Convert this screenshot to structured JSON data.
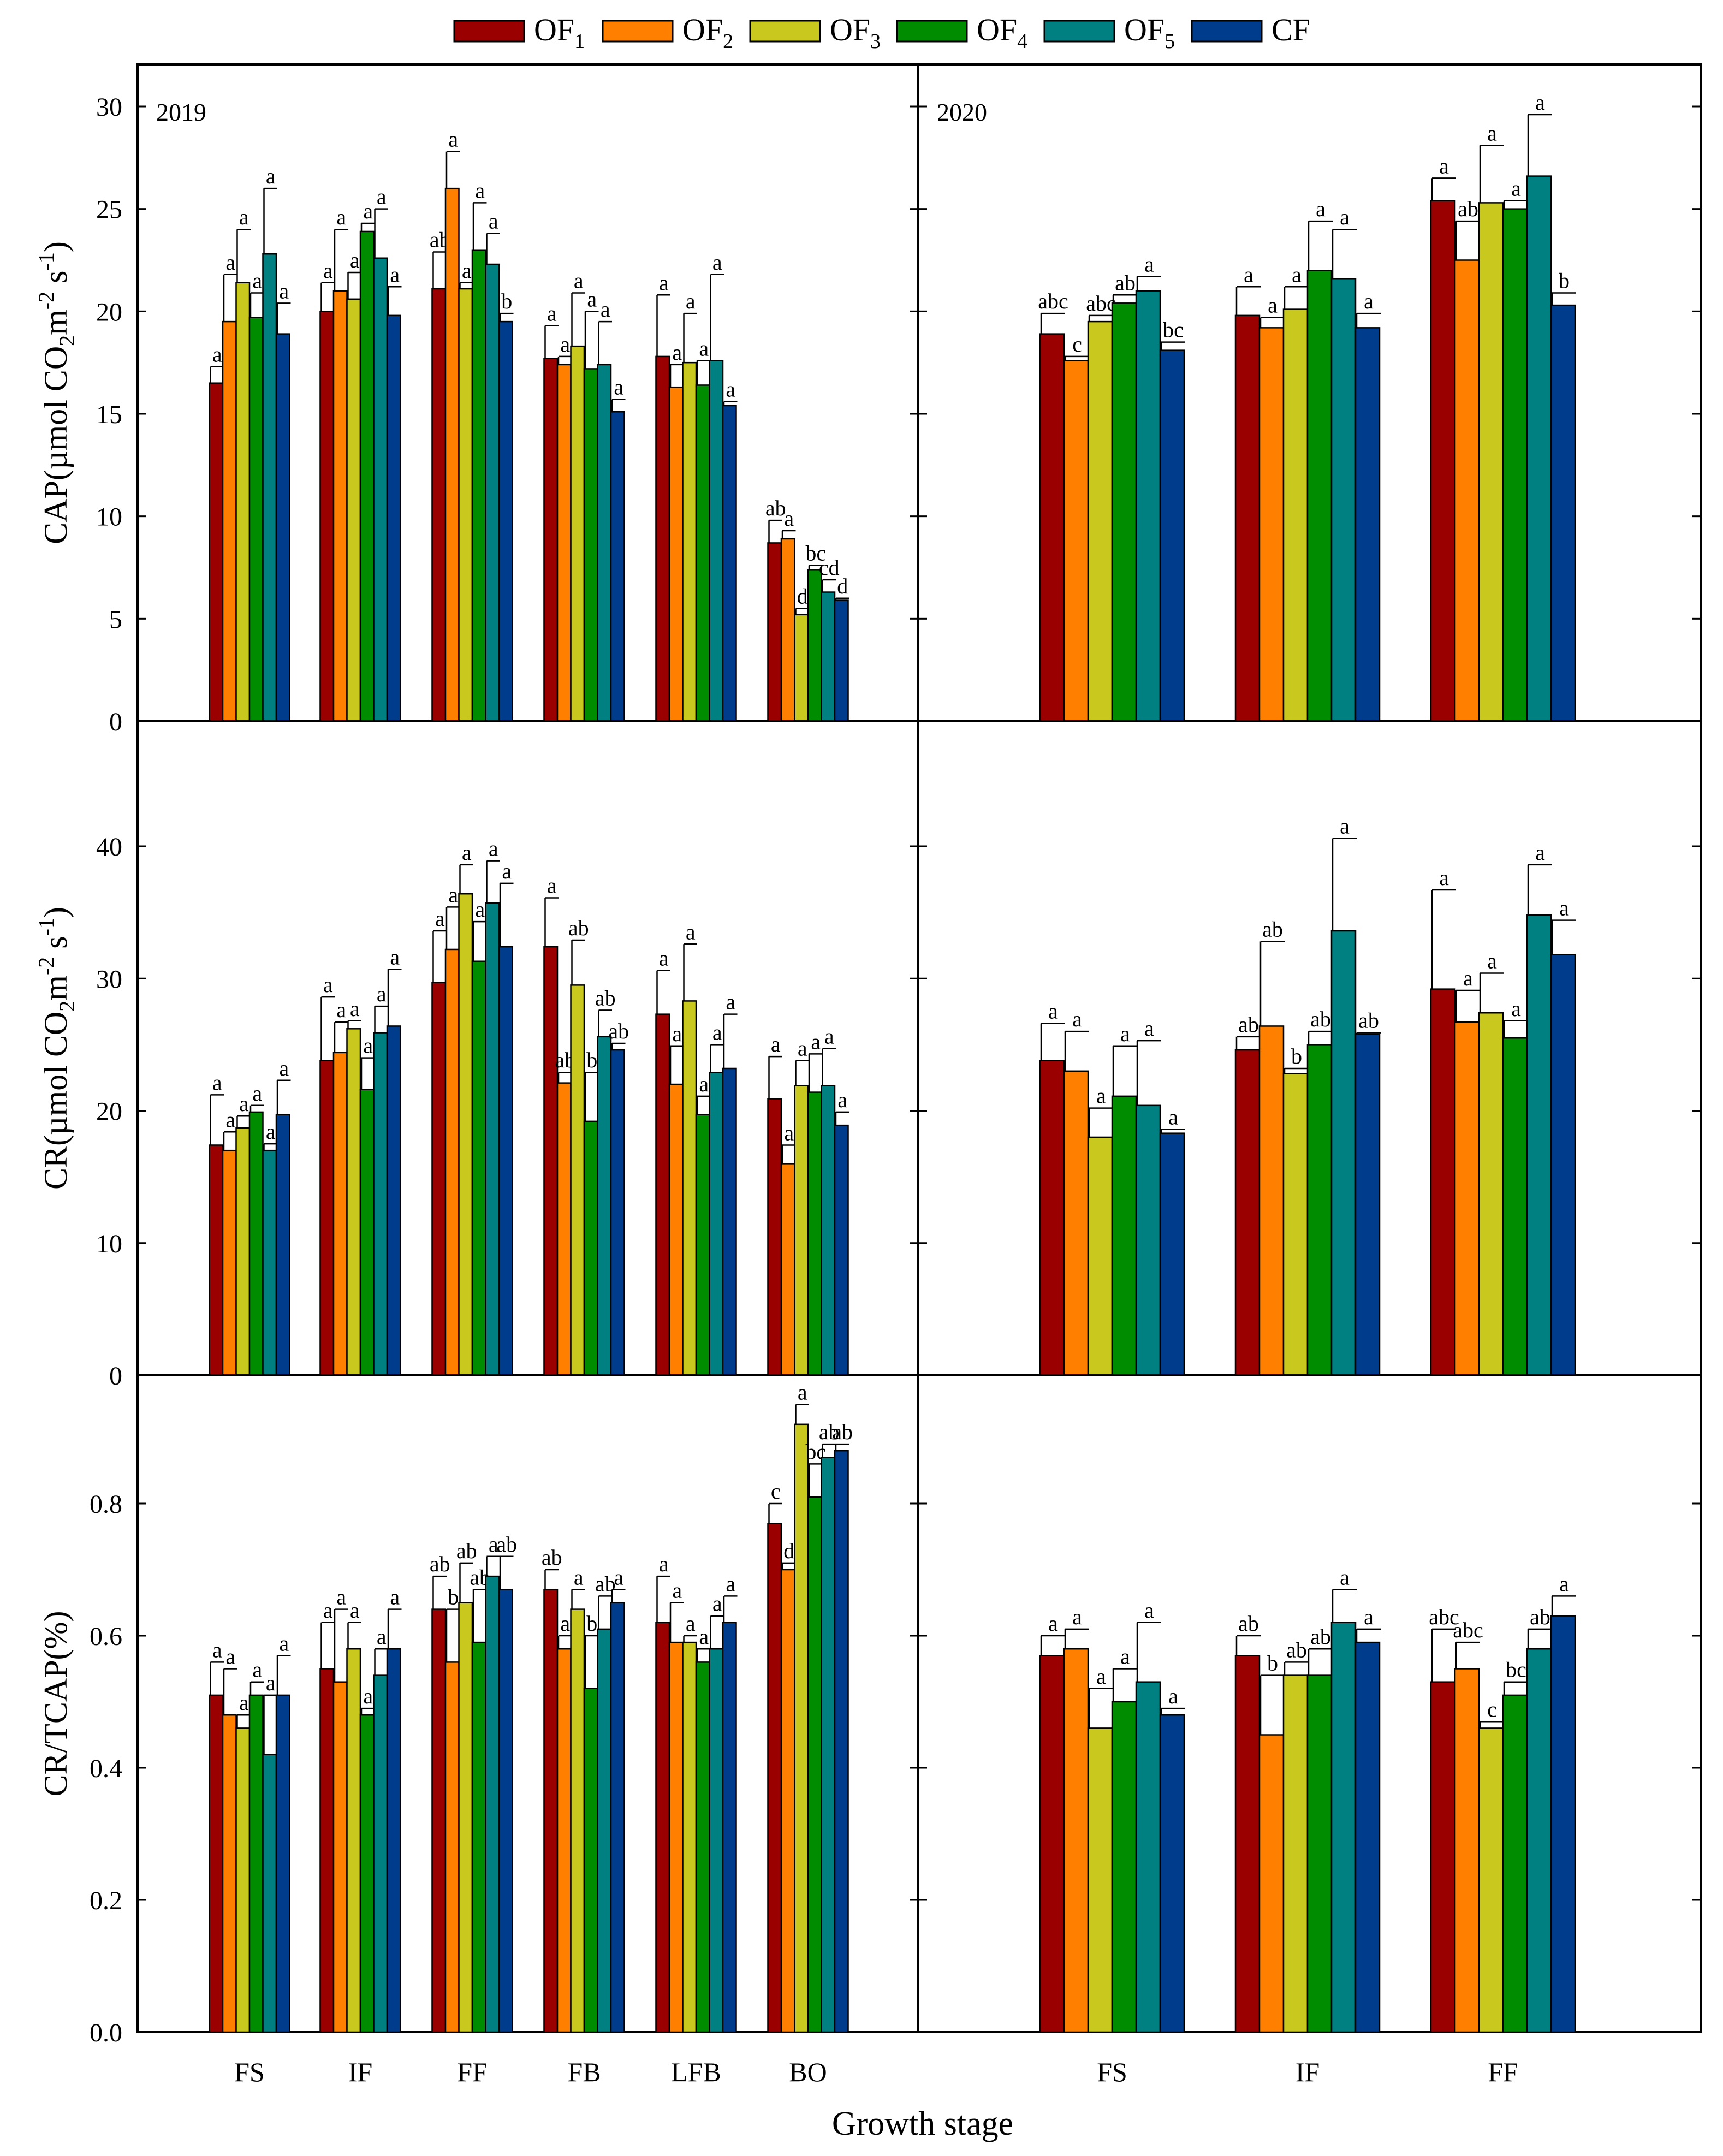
{
  "legend": [
    {
      "name": "OF",
      "sub": "1",
      "color": "#9b0000"
    },
    {
      "name": "OF",
      "sub": "2",
      "color": "#ff8000"
    },
    {
      "name": "OF",
      "sub": "3",
      "color": "#c8c81e"
    },
    {
      "name": "OF",
      "sub": "4",
      "color": "#008c00"
    },
    {
      "name": "OF",
      "sub": "5",
      "color": "#008080"
    },
    {
      "name": "CF",
      "sub": "",
      "color": "#003c8c"
    }
  ],
  "xlabel": "Growth stage",
  "chart_data": [
    {
      "type": "bar",
      "row": 0,
      "col": 0,
      "year": "2019",
      "ylabel": {
        "main": "CAP(µmol CO",
        "sub": "2",
        "rest": "m",
        "sup1": "-2",
        "mid": " s",
        "sup2": "-1",
        "end": ")"
      },
      "ylim": [
        0,
        30
      ],
      "yticks": [
        "0",
        "5",
        "10",
        "15",
        "20",
        "25",
        "30"
      ],
      "tick_values": [
        0,
        5,
        10,
        15,
        20,
        25,
        30
      ],
      "categories": [
        "FS",
        "IF",
        "FF",
        "FB",
        "LFB",
        "BO"
      ],
      "series": [
        {
          "name": "OF1",
          "values": [
            16.5,
            20.0,
            21.1,
            17.7,
            17.8,
            8.7
          ],
          "errors": [
            0.8,
            1.4,
            1.8,
            1.6,
            3.0,
            1.1
          ],
          "labels": [
            "a",
            "a",
            "ab",
            "a",
            "a",
            "ab"
          ]
        },
        {
          "name": "OF2",
          "values": [
            19.5,
            21.0,
            26.0,
            17.4,
            16.3,
            8.9
          ],
          "errors": [
            2.3,
            3.0,
            1.8,
            0.4,
            1.1,
            0.4
          ],
          "labels": [
            "a",
            "a",
            "a",
            "a",
            "a",
            "a"
          ]
        },
        {
          "name": "OF3",
          "values": [
            21.4,
            20.6,
            21.1,
            18.3,
            17.5,
            5.2
          ],
          "errors": [
            2.6,
            1.3,
            0.3,
            2.6,
            2.4,
            0.3
          ],
          "labels": [
            "a",
            "a",
            "a",
            "a",
            "a",
            "d"
          ]
        },
        {
          "name": "OF4",
          "values": [
            19.7,
            23.9,
            23.0,
            17.2,
            16.4,
            7.4
          ],
          "errors": [
            1.2,
            0.4,
            2.3,
            2.8,
            1.2,
            0.2
          ],
          "labels": [
            "a",
            "a",
            "a",
            "a",
            "a",
            "bc"
          ]
        },
        {
          "name": "OF5",
          "values": [
            22.8,
            22.6,
            22.3,
            17.4,
            17.6,
            6.3
          ],
          "errors": [
            3.2,
            2.4,
            1.5,
            2.1,
            4.2,
            0.6
          ],
          "labels": [
            "a",
            "a",
            "a",
            "a",
            "a",
            "cd"
          ]
        },
        {
          "name": "CF",
          "values": [
            18.9,
            19.8,
            19.5,
            15.1,
            15.4,
            5.9
          ],
          "errors": [
            1.5,
            1.4,
            0.4,
            0.6,
            0.2,
            0.1
          ],
          "labels": [
            "a",
            "a",
            "b",
            "a",
            "a",
            "d"
          ]
        }
      ]
    },
    {
      "type": "bar",
      "row": 0,
      "col": 1,
      "year": "2020",
      "ylim": [
        0,
        30
      ],
      "yticks": [],
      "tick_values": [
        0,
        5,
        10,
        15,
        20,
        25,
        30
      ],
      "categories": [
        "FS",
        "IF",
        "FF"
      ],
      "series": [
        {
          "name": "OF1",
          "values": [
            18.9,
            19.8,
            25.4
          ],
          "errors": [
            1.0,
            1.4,
            1.1
          ],
          "labels": [
            "abc",
            "a",
            "a"
          ]
        },
        {
          "name": "OF2",
          "values": [
            17.6,
            19.2,
            22.5
          ],
          "errors": [
            0.2,
            0.5,
            1.9
          ],
          "labels": [
            "c",
            "a",
            "ab"
          ]
        },
        {
          "name": "OF3",
          "values": [
            19.5,
            20.1,
            25.3
          ],
          "errors": [
            0.3,
            1.1,
            2.8
          ],
          "labels": [
            "abc",
            "a",
            "a"
          ]
        },
        {
          "name": "OF4",
          "values": [
            20.4,
            22.0,
            25.0
          ],
          "errors": [
            0.4,
            2.4,
            0.4
          ],
          "labels": [
            "ab",
            "a",
            "a"
          ]
        },
        {
          "name": "OF5",
          "values": [
            21.0,
            21.6,
            26.6
          ],
          "errors": [
            0.7,
            2.4,
            3.0
          ],
          "labels": [
            "a",
            "a",
            "a"
          ]
        },
        {
          "name": "CF",
          "values": [
            18.1,
            19.2,
            20.3
          ],
          "errors": [
            0.4,
            0.7,
            0.6
          ],
          "labels": [
            "bc",
            "a",
            "b"
          ]
        }
      ]
    },
    {
      "type": "bar",
      "row": 1,
      "col": 0,
      "ylabel": {
        "main": "CR(µmol CO",
        "sub": "2",
        "rest": "m",
        "sup1": "-2",
        "mid": " s",
        "sup2": "-1",
        "end": ")"
      },
      "ylim": [
        0,
        45
      ],
      "yticks": [
        "0",
        "10",
        "20",
        "30",
        "40"
      ],
      "tick_values": [
        0,
        10,
        20,
        30,
        40
      ],
      "categories": [
        "FS",
        "IF",
        "FF",
        "FB",
        "LFB",
        "BO"
      ],
      "series": [
        {
          "name": "OF1",
          "values": [
            17.4,
            23.8,
            29.7,
            32.4,
            27.3,
            20.9
          ],
          "errors": [
            3.8,
            4.8,
            3.9,
            3.7,
            3.3,
            3.2
          ],
          "labels": [
            "a",
            "a",
            "a",
            "a",
            "a",
            "a"
          ]
        },
        {
          "name": "OF2",
          "values": [
            17.0,
            24.4,
            32.2,
            22.1,
            22.0,
            16.0
          ],
          "errors": [
            1.4,
            2.3,
            3.2,
            0.8,
            2.9,
            1.4
          ],
          "labels": [
            "a",
            "a",
            "a",
            "ab",
            "a",
            "a"
          ]
        },
        {
          "name": "OF3",
          "values": [
            18.7,
            26.2,
            36.4,
            29.5,
            28.3,
            21.9
          ],
          "errors": [
            0.9,
            0.6,
            2.2,
            3.4,
            4.3,
            1.9
          ],
          "labels": [
            "a",
            "a",
            "a",
            "ab",
            "a",
            "a"
          ]
        },
        {
          "name": "OF4",
          "values": [
            19.9,
            21.6,
            31.3,
            19.2,
            19.7,
            21.4
          ],
          "errors": [
            0.5,
            2.4,
            3.0,
            3.7,
            1.4,
            2.9
          ],
          "labels": [
            "a",
            "a",
            "a",
            "b",
            "a",
            "a"
          ]
        },
        {
          "name": "OF5",
          "values": [
            17.0,
            25.9,
            35.7,
            25.6,
            22.9,
            21.9
          ],
          "errors": [
            0.5,
            2.0,
            3.2,
            2.0,
            2.1,
            2.8
          ],
          "labels": [
            "a",
            "a",
            "a",
            "ab",
            "a",
            "a"
          ]
        },
        {
          "name": "CF",
          "values": [
            19.7,
            26.4,
            32.4,
            24.6,
            23.2,
            18.9
          ],
          "errors": [
            2.6,
            4.3,
            4.8,
            0.5,
            4.1,
            1.0
          ],
          "labels": [
            "a",
            "a",
            "a",
            "ab",
            "a",
            "a"
          ]
        }
      ]
    },
    {
      "type": "bar",
      "row": 1,
      "col": 1,
      "ylim": [
        0,
        45
      ],
      "yticks": [],
      "tick_values": [
        0,
        10,
        20,
        30,
        40
      ],
      "categories": [
        "FS",
        "IF",
        "FF"
      ],
      "series": [
        {
          "name": "OF1",
          "values": [
            23.8,
            24.6,
            29.2
          ],
          "errors": [
            2.8,
            1.0,
            7.5
          ],
          "labels": [
            "a",
            "ab",
            "a"
          ]
        },
        {
          "name": "OF2",
          "values": [
            23.0,
            26.4,
            26.7
          ],
          "errors": [
            3.0,
            6.4,
            2.4
          ],
          "labels": [
            "a",
            "ab",
            "a"
          ]
        },
        {
          "name": "OF3",
          "values": [
            18.0,
            22.8,
            27.4
          ],
          "errors": [
            2.2,
            0.4,
            3.0
          ],
          "labels": [
            "a",
            "b",
            "a"
          ]
        },
        {
          "name": "OF4",
          "values": [
            21.1,
            25.0,
            25.5
          ],
          "errors": [
            3.8,
            1.0,
            1.3
          ],
          "labels": [
            "a",
            "ab",
            "a"
          ]
        },
        {
          "name": "OF5",
          "values": [
            20.4,
            33.6,
            34.8
          ],
          "errors": [
            4.9,
            7.0,
            3.8
          ],
          "labels": [
            "a",
            "a",
            "a"
          ]
        },
        {
          "name": "CF",
          "values": [
            18.3,
            25.8,
            31.8
          ],
          "errors": [
            0.3,
            0.1,
            2.6
          ],
          "labels": [
            "a",
            "ab",
            "a"
          ]
        }
      ]
    },
    {
      "type": "bar",
      "row": 2,
      "col": 0,
      "ylabel": {
        "main": "CR/TCAP(%)"
      },
      "ylim": [
        0,
        0.97
      ],
      "yticks": [
        "0.0",
        "0.2",
        "0.4",
        "0.6",
        "0.8"
      ],
      "tick_values": [
        0,
        0.2,
        0.4,
        0.6,
        0.8
      ],
      "categories": [
        "FS",
        "IF",
        "FF",
        "FB",
        "LFB",
        "BO"
      ],
      "series": [
        {
          "name": "OF1",
          "values": [
            0.51,
            0.55,
            0.64,
            0.67,
            0.62,
            0.77
          ],
          "errors": [
            0.05,
            0.07,
            0.05,
            0.03,
            0.07,
            0.03
          ],
          "labels": [
            "a",
            "a",
            "ab",
            "ab",
            "a",
            "c"
          ]
        },
        {
          "name": "OF2",
          "values": [
            0.48,
            0.53,
            0.56,
            0.58,
            0.59,
            0.7
          ],
          "errors": [
            0.07,
            0.11,
            0.08,
            0.02,
            0.06,
            0.01
          ],
          "labels": [
            "a",
            "a",
            "b",
            "a",
            "a",
            "d"
          ]
        },
        {
          "name": "OF3",
          "values": [
            0.46,
            0.58,
            0.65,
            0.64,
            0.59,
            0.92
          ],
          "errors": [
            0.02,
            0.04,
            0.06,
            0.03,
            0.01,
            0.03
          ],
          "labels": [
            "a",
            "a",
            "ab",
            "a",
            "a",
            "a"
          ]
        },
        {
          "name": "OF4",
          "values": [
            0.51,
            0.48,
            0.59,
            0.52,
            0.56,
            0.81
          ],
          "errors": [
            0.02,
            0.01,
            0.08,
            0.08,
            0.02,
            0.05
          ],
          "labels": [
            "a",
            "a",
            "ab",
            "b",
            "a",
            "bc"
          ]
        },
        {
          "name": "OF5",
          "values": [
            0.42,
            0.54,
            0.69,
            0.61,
            0.58,
            0.87
          ],
          "errors": [
            0.09,
            0.04,
            0.03,
            0.05,
            0.05,
            0.02
          ],
          "labels": [
            "a",
            "a",
            "a",
            "ab",
            "a",
            "ab"
          ]
        },
        {
          "name": "CF",
          "values": [
            0.51,
            0.58,
            0.67,
            0.65,
            0.62,
            0.88
          ],
          "errors": [
            0.06,
            0.06,
            0.05,
            0.02,
            0.04,
            0.01
          ],
          "labels": [
            "a",
            "a",
            "ab",
            "a",
            "a",
            "ab"
          ]
        }
      ]
    },
    {
      "type": "bar",
      "row": 2,
      "col": 1,
      "ylim": [
        0,
        0.97
      ],
      "yticks": [],
      "tick_values": [
        0,
        0.2,
        0.4,
        0.6,
        0.8
      ],
      "categories": [
        "FS",
        "IF",
        "FF"
      ],
      "series": [
        {
          "name": "OF1",
          "values": [
            0.57,
            0.57,
            0.53
          ],
          "errors": [
            0.03,
            0.03,
            0.08
          ],
          "labels": [
            "a",
            "ab",
            "abc"
          ]
        },
        {
          "name": "OF2",
          "values": [
            0.58,
            0.45,
            0.55
          ],
          "errors": [
            0.03,
            0.09,
            0.04
          ],
          "labels": [
            "a",
            "b",
            "abc"
          ]
        },
        {
          "name": "OF3",
          "values": [
            0.46,
            0.54,
            0.46
          ],
          "errors": [
            0.06,
            0.02,
            0.01
          ],
          "labels": [
            "a",
            "ab",
            "c"
          ]
        },
        {
          "name": "OF4",
          "values": [
            0.5,
            0.54,
            0.51
          ],
          "errors": [
            0.05,
            0.04,
            0.02
          ],
          "labels": [
            "a",
            "ab",
            "bc"
          ]
        },
        {
          "name": "OF5",
          "values": [
            0.53,
            0.62,
            0.58
          ],
          "errors": [
            0.09,
            0.05,
            0.03
          ],
          "labels": [
            "a",
            "a",
            "ab"
          ]
        },
        {
          "name": "CF",
          "values": [
            0.48,
            0.59,
            0.63
          ],
          "errors": [
            0.01,
            0.02,
            0.03
          ],
          "labels": [
            "a",
            "a",
            "a"
          ]
        }
      ]
    }
  ]
}
